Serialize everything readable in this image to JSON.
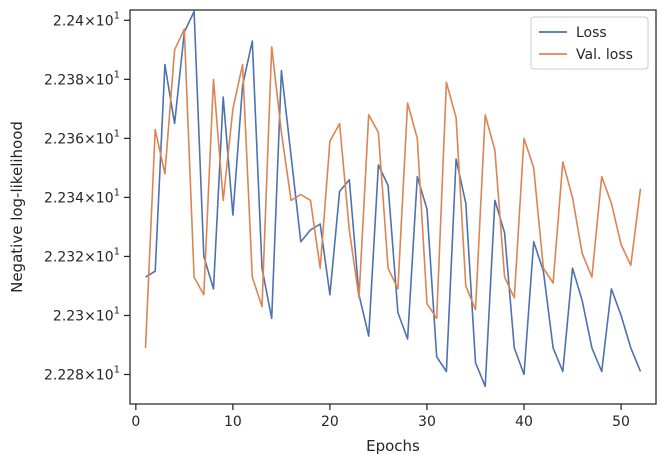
{
  "chart_data": {
    "type": "line",
    "xlabel": "Epochs",
    "ylabel": "Negative log-likelihood",
    "xlim": [
      -0.6,
      53.6
    ],
    "ylim": [
      22.27,
      22.4035
    ],
    "x_ticks": [
      0,
      10,
      20,
      30,
      40,
      50
    ],
    "y_ticks": [
      {
        "value": 22.28,
        "mantissa": "2.228"
      },
      {
        "value": 22.3,
        "mantissa": "2.23"
      },
      {
        "value": 22.32,
        "mantissa": "2.232"
      },
      {
        "value": 22.34,
        "mantissa": "2.234"
      },
      {
        "value": 22.36,
        "mantissa": "2.236"
      },
      {
        "value": 22.38,
        "mantissa": "2.238"
      },
      {
        "value": 22.4,
        "mantissa": "2.24"
      }
    ],
    "y_tick_multiplier": "×10",
    "y_tick_exponent": "1",
    "grid": false,
    "legend_position": "top-right",
    "x": [
      1,
      2,
      3,
      4,
      5,
      6,
      7,
      8,
      9,
      10,
      11,
      12,
      13,
      14,
      15,
      16,
      17,
      18,
      19,
      20,
      21,
      22,
      23,
      24,
      25,
      26,
      27,
      28,
      29,
      30,
      31,
      32,
      33,
      34,
      35,
      36,
      37,
      38,
      39,
      40,
      41,
      42,
      43,
      44,
      45,
      46,
      47,
      48,
      49,
      50,
      51,
      52
    ],
    "series": [
      {
        "name": "Loss",
        "color": "#4c72b0",
        "values": [
          22.313,
          22.315,
          22.385,
          22.365,
          22.396,
          22.403,
          22.32,
          22.309,
          22.374,
          22.334,
          22.378,
          22.393,
          22.316,
          22.299,
          22.383,
          22.354,
          22.325,
          22.329,
          22.331,
          22.307,
          22.342,
          22.346,
          22.307,
          22.293,
          22.351,
          22.344,
          22.301,
          22.292,
          22.347,
          22.336,
          22.286,
          22.281,
          22.353,
          22.338,
          22.284,
          22.276,
          22.339,
          22.328,
          22.289,
          22.28,
          22.325,
          22.315,
          22.289,
          22.281,
          22.316,
          22.305,
          22.289,
          22.281,
          22.309,
          22.3,
          22.289,
          22.281
        ]
      },
      {
        "name": "Val. loss",
        "color": "#dd8452",
        "values": [
          22.289,
          22.363,
          22.348,
          22.39,
          22.397,
          22.313,
          22.307,
          22.38,
          22.339,
          22.37,
          22.385,
          22.313,
          22.303,
          22.391,
          22.362,
          22.339,
          22.341,
          22.339,
          22.316,
          22.359,
          22.365,
          22.329,
          22.306,
          22.368,
          22.362,
          22.316,
          22.309,
          22.372,
          22.36,
          22.304,
          22.299,
          22.379,
          22.367,
          22.31,
          22.302,
          22.368,
          22.356,
          22.313,
          22.306,
          22.36,
          22.35,
          22.316,
          22.311,
          22.352,
          22.34,
          22.321,
          22.313,
          22.347,
          22.338,
          22.324,
          22.317,
          22.343
        ]
      }
    ]
  }
}
